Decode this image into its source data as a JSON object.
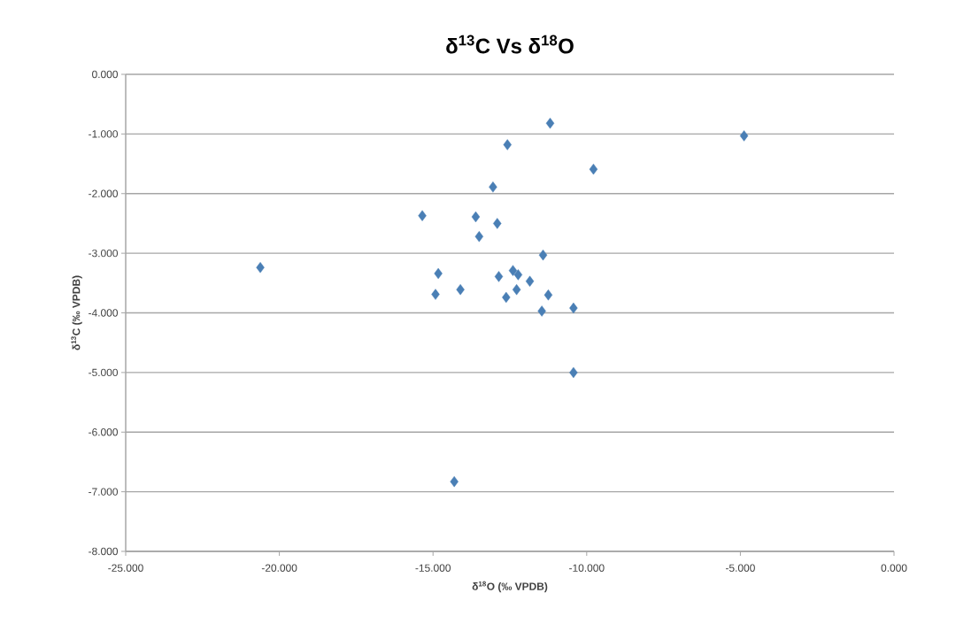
{
  "chart_data": {
    "type": "scatter",
    "title": "δ$^{13}$C Vs δ$^{18}$O",
    "xlabel": "δ$^{18}$O (‰ VPDB)",
    "ylabel": "δ$^{13}$C (‰ VPDB)",
    "x": [
      -11.19,
      -12.58,
      -9.78,
      -13.05,
      -15.35,
      -13.61,
      -12.91,
      -13.5,
      -11.42,
      -14.83,
      -12.86,
      -12.4,
      -12.23,
      -11.85,
      -14.11,
      -14.92,
      -12.28,
      -12.62,
      -11.25,
      -11.46,
      -10.43,
      -10.43,
      -20.62,
      -4.88,
      -14.31
    ],
    "values": [
      -0.82,
      -1.18,
      -1.59,
      -1.89,
      -2.37,
      -2.39,
      -2.5,
      -2.72,
      -3.03,
      -3.34,
      -3.39,
      -3.29,
      -3.36,
      -3.47,
      -3.61,
      -3.69,
      -3.61,
      -3.74,
      -3.7,
      -3.97,
      -3.92,
      -5.0,
      -3.24,
      -1.03,
      -6.83
    ],
    "color": "#4a7fb5",
    "marker": "diamond",
    "grid": "y",
    "xlim": [
      -25,
      0
    ],
    "xticks": [
      {
        "value": -25,
        "label": "-25.000"
      },
      {
        "value": -20,
        "label": "-20.000"
      },
      {
        "value": -15,
        "label": "-15.000"
      },
      {
        "value": -10,
        "label": "-10.000"
      },
      {
        "value": -5,
        "label": "-5.000"
      },
      {
        "value": 0,
        "label": "0.000"
      }
    ],
    "ylim": [
      -8,
      0
    ],
    "yticks": [
      {
        "value": -8,
        "label": "-8.000"
      },
      {
        "value": -7,
        "label": "-7.000"
      },
      {
        "value": -6,
        "label": "-6.000"
      },
      {
        "value": -5,
        "label": "-5.000"
      },
      {
        "value": -4,
        "label": "-4.000"
      },
      {
        "value": -3,
        "label": "-3.000"
      },
      {
        "value": -2,
        "label": "-2.000"
      },
      {
        "value": -1,
        "label": "-1.000"
      },
      {
        "value": 0,
        "label": "0.000"
      }
    ]
  }
}
